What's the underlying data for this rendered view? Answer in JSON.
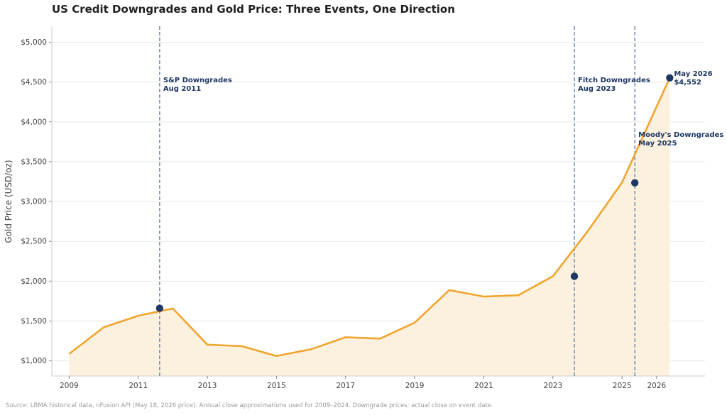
{
  "chart_data": {
    "type": "line",
    "title": "US Credit Downgrades and Gold Price: Three Events, One Direction",
    "xlabel": "",
    "ylabel": "Gold Price (USD/oz)",
    "x_ticks": [
      "2009",
      "2011",
      "2013",
      "2015",
      "2017",
      "2019",
      "2021",
      "2023",
      "2025",
      "2026"
    ],
    "y_ticks": [
      "$1,000",
      "$1,500",
      "$2,000",
      "$2,500",
      "$3,000",
      "$3,500",
      "$4,000",
      "$4,500",
      "$5,000"
    ],
    "ylim": [
      810,
      5200
    ],
    "grid": "horizontal",
    "line_color": "#f0a52e",
    "fill_color": "#fcf1df",
    "marker_color": "#1f3864",
    "event_line_color": "#5b7aa6",
    "series": [
      {
        "x": [
          2009,
          2010,
          2011,
          2012,
          2013,
          2014,
          2015,
          2016,
          2017,
          2018,
          2019,
          2020,
          2021,
          2022,
          2023,
          2024,
          2025,
          2026.38
        ],
        "values": [
          1087,
          1421,
          1566,
          1657,
          1204,
          1184,
          1060,
          1146,
          1296,
          1279,
          1480,
          1888,
          1806,
          1823,
          2062,
          2624,
          3240,
          4552
        ]
      }
    ],
    "events": [
      {
        "x": 2011.62,
        "value": 1660,
        "label_line1": "S&P Downgrades",
        "label_line2": "Aug 2011"
      },
      {
        "x": 2023.62,
        "value": 2062,
        "label_line1": "Fitch Downgrades",
        "label_line2": "Aug 2023"
      },
      {
        "x": 2025.37,
        "value": 3235,
        "label_line1": "Moody's Downgrades",
        "label_line2": "May 2025"
      }
    ],
    "latest_point": {
      "x": 2026.38,
      "value": 4552,
      "label_line1": "May 2026",
      "label_line2": "$4,552"
    }
  },
  "source_note": "Source: LBMA historical data, nFusion API (May 18, 2026 price). Annual close approximations used for 2009–2024. Downgrade prices: actual close on event date."
}
